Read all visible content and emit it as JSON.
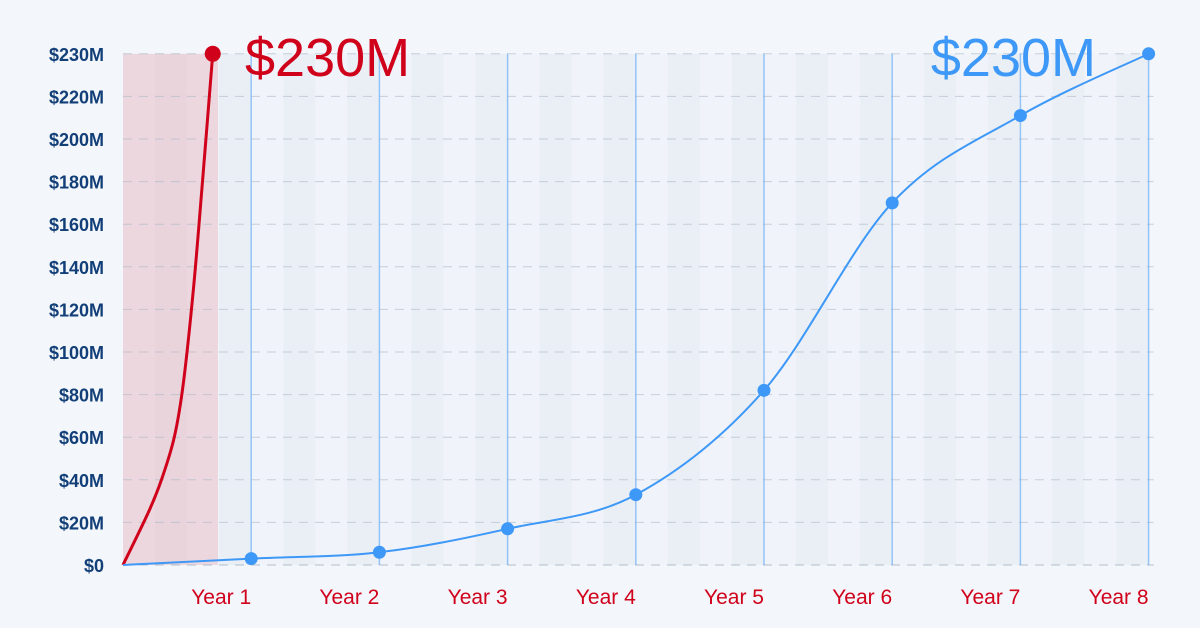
{
  "chart_data": {
    "type": "line",
    "title": "",
    "xlabel": "",
    "ylabel": "",
    "categories": [
      "Year 1",
      "Year 2",
      "Year 3",
      "Year 4",
      "Year 5",
      "Year 6",
      "Year 7",
      "Year 8"
    ],
    "y_ticks": [
      {
        "value": 0,
        "label": "$0"
      },
      {
        "value": 20,
        "label": "$20M"
      },
      {
        "value": 40,
        "label": "$40M"
      },
      {
        "value": 60,
        "label": "$60M"
      },
      {
        "value": 80,
        "label": "$80M"
      },
      {
        "value": 100,
        "label": "$100M"
      },
      {
        "value": 120,
        "label": "$120M"
      },
      {
        "value": 140,
        "label": "$140M"
      },
      {
        "value": 160,
        "label": "$160M"
      },
      {
        "value": 180,
        "label": "$180M"
      },
      {
        "value": 200,
        "label": "$200M"
      },
      {
        "value": 220,
        "label": "$220M"
      },
      {
        "value": 230,
        "label": "$230M"
      }
    ],
    "y_unit": "$M",
    "ylim": [
      0,
      230
    ],
    "grid": true,
    "series": [
      {
        "color": "#d0021b",
        "x": [
          0,
          0.2,
          0.3,
          0.4,
          0.47,
          0.55,
          0.62,
          0.7
        ],
        "values": [
          0,
          25,
          40,
          60,
          85,
          130,
          180,
          230
        ],
        "end_label": "$230M"
      },
      {
        "color": "#3d98f7",
        "x": [
          0,
          1,
          2,
          3,
          4,
          5,
          6,
          7,
          8
        ],
        "values": [
          0,
          3,
          6,
          17,
          33,
          82,
          170,
          211,
          230
        ],
        "end_label": "$230M"
      }
    ]
  }
}
